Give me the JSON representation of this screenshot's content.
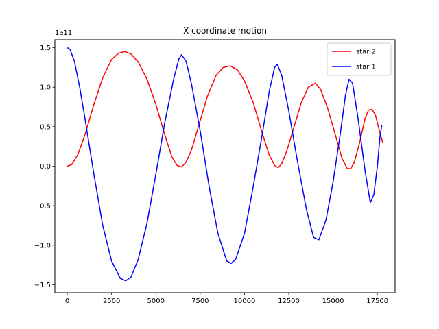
{
  "chart_data": {
    "type": "line",
    "title": "X coordinate motion",
    "xlabel": "",
    "ylabel": "",
    "y_offset_label": "1e11",
    "xlim": [
      -700,
      18500
    ],
    "ylim": [
      -1.6,
      1.6
    ],
    "x_ticks": [
      0,
      2500,
      5000,
      7500,
      10000,
      12500,
      15000,
      17500
    ],
    "x_tick_labels": [
      "0",
      "2500",
      "5000",
      "7500",
      "10000",
      "12500",
      "15000",
      "17500"
    ],
    "y_ticks": [
      -1.5,
      -1.0,
      -0.5,
      0.0,
      0.5,
      1.0,
      1.5
    ],
    "y_tick_labels": [
      "−1.5",
      "−1.0",
      "−0.5",
      "0.0",
      "0.5",
      "1.0",
      "1.5"
    ],
    "grid": false,
    "legend_position": "top-right",
    "series": [
      {
        "name": "star 2",
        "color": "#ff0000",
        "x": [
          0,
          250,
          600,
          1000,
          1500,
          2000,
          2500,
          2900,
          3250,
          3600,
          4000,
          4500,
          5000,
          5500,
          5900,
          6200,
          6450,
          6700,
          7000,
          7400,
          7900,
          8400,
          8800,
          9200,
          9600,
          10000,
          10500,
          11000,
          11400,
          11700,
          11900,
          12100,
          12400,
          12800,
          13200,
          13600,
          14000,
          14300,
          14700,
          15100,
          15500,
          15800,
          16000,
          16200,
          16500,
          16800,
          17000,
          17200,
          17400,
          17600,
          17800
        ],
        "y": [
          0.0,
          0.02,
          0.15,
          0.4,
          0.78,
          1.12,
          1.35,
          1.43,
          1.45,
          1.42,
          1.32,
          1.1,
          0.78,
          0.4,
          0.12,
          0.01,
          -0.01,
          0.05,
          0.2,
          0.5,
          0.88,
          1.15,
          1.25,
          1.27,
          1.22,
          1.08,
          0.8,
          0.42,
          0.14,
          0.01,
          -0.02,
          0.03,
          0.2,
          0.5,
          0.8,
          1.0,
          1.05,
          0.97,
          0.73,
          0.42,
          0.1,
          -0.03,
          -0.03,
          0.05,
          0.3,
          0.6,
          0.71,
          0.72,
          0.64,
          0.46,
          0.3
        ]
      },
      {
        "name": "star 1",
        "color": "#0000ff",
        "x": [
          0,
          150,
          400,
          700,
          1000,
          1500,
          2000,
          2500,
          3000,
          3300,
          3600,
          4000,
          4500,
          5000,
          5500,
          6000,
          6300,
          6450,
          6700,
          7000,
          7500,
          8000,
          8500,
          9000,
          9250,
          9500,
          10000,
          10500,
          11000,
          11400,
          11700,
          11850,
          12100,
          12500,
          13000,
          13500,
          13900,
          14200,
          14600,
          15000,
          15400,
          15700,
          15900,
          16100,
          16400,
          16800,
          17100,
          17300,
          17500,
          17650,
          17750
        ],
        "y": [
          1.5,
          1.48,
          1.33,
          1.0,
          0.6,
          -0.1,
          -0.75,
          -1.2,
          -1.42,
          -1.45,
          -1.4,
          -1.18,
          -0.72,
          -0.1,
          0.55,
          1.1,
          1.36,
          1.41,
          1.33,
          1.05,
          0.45,
          -0.25,
          -0.85,
          -1.2,
          -1.23,
          -1.18,
          -0.85,
          -0.25,
          0.4,
          0.95,
          1.25,
          1.29,
          1.15,
          0.7,
          0.05,
          -0.55,
          -0.9,
          -0.93,
          -0.68,
          -0.2,
          0.4,
          0.9,
          1.1,
          1.05,
          0.62,
          -0.05,
          -0.46,
          -0.36,
          0.0,
          0.38,
          0.52
        ]
      }
    ]
  }
}
